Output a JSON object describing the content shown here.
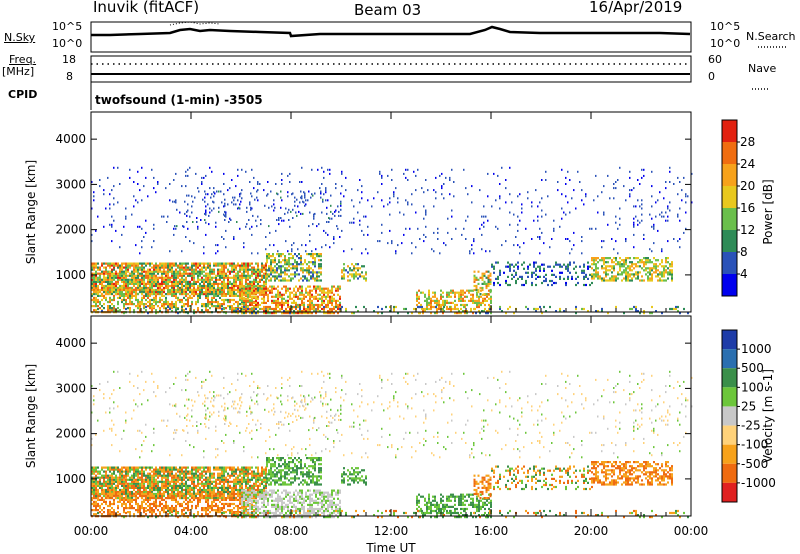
{
  "header": {
    "station": "Inuvik (fitACF)",
    "beam": "Beam 03",
    "date": "16/Apr/2019"
  },
  "top_panels": {
    "nsky_label": "N.Sky",
    "nsky_ticks": [
      "10^5",
      "10^0"
    ],
    "nsearch_label": "N.Search",
    "nsearch_ticks": [
      "10^5",
      "10^0"
    ],
    "freq_label": "Freq.",
    "freq_unit": "[MHz]",
    "freq_ticks": [
      "18",
      "8"
    ],
    "nave_label": "Nave",
    "nave_ticks": [
      "60",
      "0"
    ],
    "cpid_label": "CPID",
    "cpid_value": "twofsound (1-min) -3505"
  },
  "chart_data": [
    {
      "type": "heatmap",
      "name": "power-panel",
      "xlabel": "",
      "ylabel": "Slant Range [km]",
      "x_ticks": [
        "00:00",
        "04:00",
        "08:00",
        "12:00",
        "16:00",
        "20:00",
        "00:00"
      ],
      "xlim_hours": [
        0,
        24
      ],
      "ylim": [
        180,
        4600
      ],
      "y_ticks": [
        1000,
        2000,
        3000,
        4000
      ],
      "colorbar": {
        "label": "Power [dB]",
        "range": [
          0,
          32
        ],
        "ticks": [
          4,
          8,
          12,
          16,
          20,
          24,
          28
        ],
        "colors": [
          "#0000ee",
          "#2a52b8",
          "#2e8b57",
          "#6abf4b",
          "#e8c81e",
          "#f7a21b",
          "#f06d10",
          "#e22110"
        ]
      }
    },
    {
      "type": "heatmap",
      "name": "velocity-panel",
      "xlabel": "Time UT",
      "ylabel": "Slant Range [km]",
      "x_ticks": [
        "00:00",
        "04:00",
        "08:00",
        "12:00",
        "16:00",
        "20:00",
        "00:00"
      ],
      "xlim_hours": [
        0,
        24
      ],
      "ylim": [
        180,
        4600
      ],
      "y_ticks": [
        1000,
        2000,
        3000,
        4000
      ],
      "colorbar": {
        "label": "Velocity [m s-1]",
        "tick_labels": [
          "1000",
          "500",
          "100",
          "25",
          "-25",
          "-100",
          "-500",
          "-1000"
        ],
        "colors": [
          "#1e3ca8",
          "#2a6fb0",
          "#3a8f4a",
          "#6cc63a",
          "#c8c8c8",
          "#ffd27a",
          "#f7a21b",
          "#ef6b10",
          "#e02020"
        ]
      }
    }
  ]
}
